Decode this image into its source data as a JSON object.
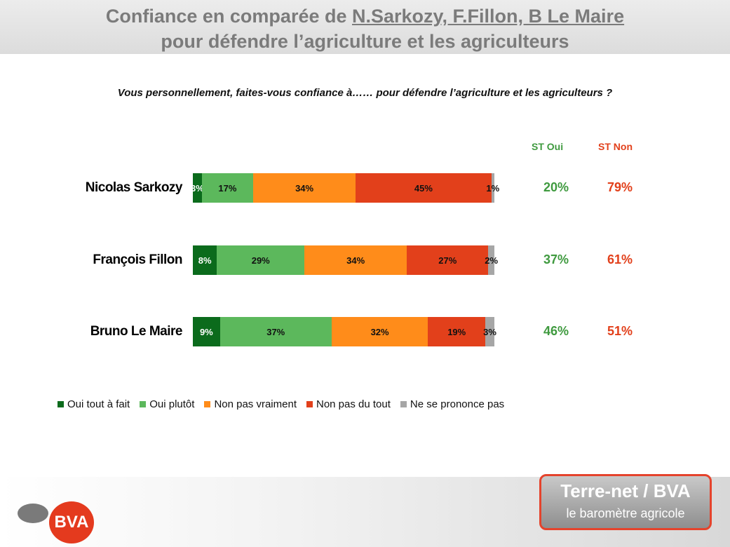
{
  "header": {
    "title_line1_prefix": "Confiance en comparée de ",
    "title_line1_names": "N.Sarkozy, F.Fillon, B Le Maire",
    "title_line2": "pour défendre l’agriculture et les agriculteurs"
  },
  "question": "Vous personnellement, faites-vous confiance à…… pour défendre l’agriculture et les agriculteurs ?",
  "columns": {
    "st_oui": "ST Oui",
    "st_non": "ST Non"
  },
  "colors": {
    "oui_tout_a_fait": "#0b6b1c",
    "oui_plutot": "#5cb85c",
    "non_pas_vraiment": "#ff8c1a",
    "non_pas_du_tout": "#e2401b",
    "nspp": "#a6a6a6",
    "st_oui_text": "#3f9a3f",
    "st_non_text": "#e2401b"
  },
  "chart_data": {
    "type": "bar",
    "orientation": "horizontal",
    "stacked": true,
    "categories": [
      "Nicolas Sarkozy",
      "François Fillon",
      "Bruno Le Maire"
    ],
    "series": [
      {
        "name": "Oui tout à fait",
        "values": [
          3,
          8,
          9
        ],
        "labels": [
          "3%",
          "8%",
          "9%"
        ]
      },
      {
        "name": "Oui plutôt",
        "values": [
          17,
          29,
          37
        ],
        "labels": [
          "17%",
          "29%",
          "37%"
        ]
      },
      {
        "name": "Non pas vraiment",
        "values": [
          34,
          34,
          32
        ],
        "labels": [
          "34%",
          "34%",
          "32%"
        ]
      },
      {
        "name": "Non pas du tout",
        "values": [
          45,
          27,
          19
        ],
        "labels": [
          "45%",
          "27%",
          "19%"
        ]
      },
      {
        "name": "Ne se prononce pas",
        "values": [
          1,
          2,
          3
        ],
        "labels": [
          "1%",
          "2%",
          "3%"
        ]
      }
    ],
    "st_oui": [
      "20%",
      "37%",
      "46%"
    ],
    "st_non": [
      "79%",
      "61%",
      "51%"
    ],
    "legend_position": "bottom"
  },
  "branding": {
    "bva_logo": "BVA",
    "brand_line1": "Terre-net / BVA",
    "brand_line2": "le baromètre agricole"
  }
}
